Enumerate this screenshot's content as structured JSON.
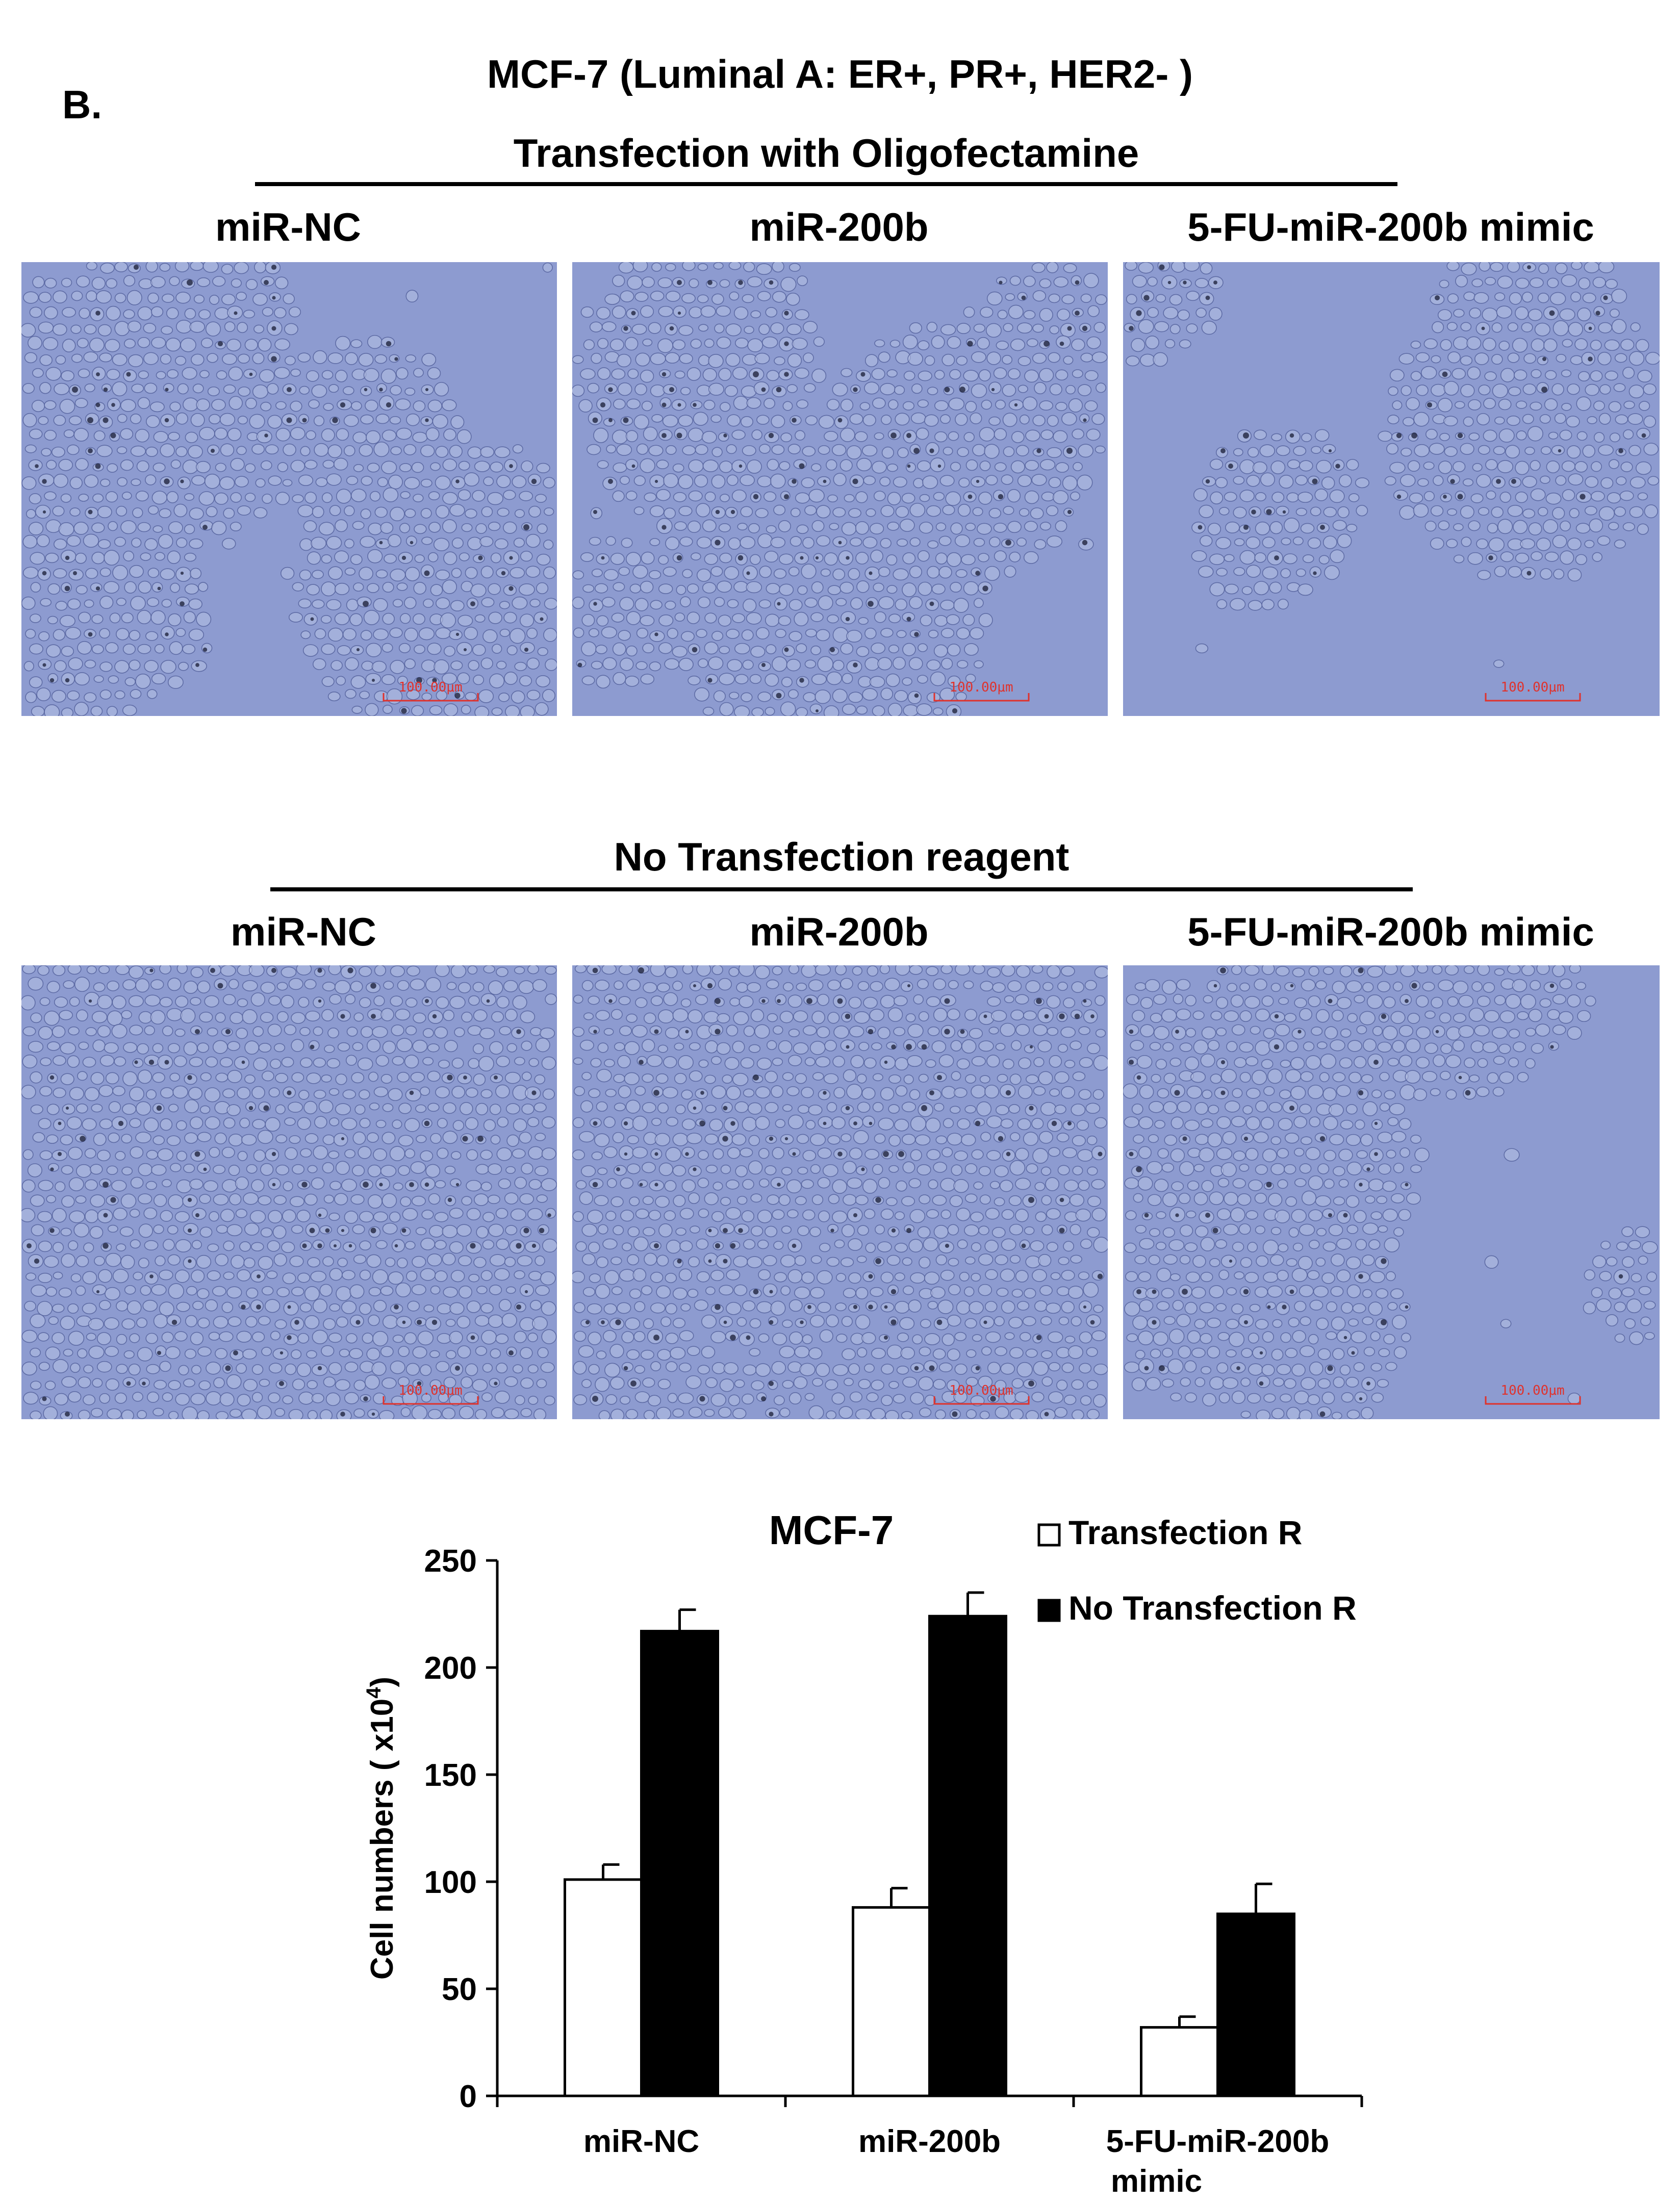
{
  "panel_letter": "B.",
  "title": "MCF-7 (Luminal A: ER+, PR+, HER2- )",
  "section1": {
    "heading": "Transfection with Oligofectamine",
    "columns": [
      "miR-NC",
      "miR-200b",
      "5-FU-miR-200b mimic"
    ]
  },
  "section2": {
    "heading": "No Transfection reagent",
    "columns": [
      "miR-NC",
      "miR-200b",
      "5-FU-miR-200b mimic"
    ]
  },
  "scale_bar_label": "100.00μm",
  "colors": {
    "micrograph_bg": "#8d9bd0",
    "cell_fill": "#b7c1e4",
    "cell_edge": "#4c5a96",
    "scale_bar": "#e0322c"
  },
  "chart_data": {
    "type": "bar",
    "title": "MCF-7",
    "ylabel": "Cell numbers ( x10",
    "ylabel_superscript": "4",
    "ylabel_suffix": ")",
    "ylim": [
      0,
      250
    ],
    "yticks": [
      0,
      50,
      100,
      150,
      200,
      250
    ],
    "categories": [
      "miR-NC",
      "miR-200b",
      "5-FU-miR-200b mimic"
    ],
    "category_lines": [
      [
        "miR-NC"
      ],
      [
        "miR-200b"
      ],
      [
        "5-FU-miR-200b",
        "mimic"
      ]
    ],
    "series": [
      {
        "name": "Transfection R",
        "color": "#ffffff",
        "values": [
          101,
          88,
          32
        ],
        "errors": [
          7,
          9,
          5
        ]
      },
      {
        "name": "No Transfection R",
        "color": "#000000",
        "values": [
          217,
          224,
          85
        ],
        "errors": [
          10,
          11,
          14
        ]
      }
    ],
    "legend_position": "top-right",
    "grid": false
  }
}
